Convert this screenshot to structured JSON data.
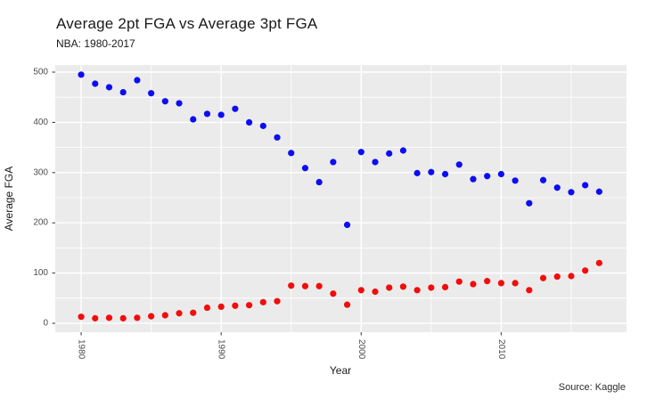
{
  "chart_data": {
    "type": "scatter",
    "title": "Average 2pt FGA vs Average 3pt FGA",
    "subtitle": "NBA: 1980-2017",
    "xlabel": "Year",
    "ylabel": "Average FGA",
    "caption": "Source: Kaggle",
    "x": [
      1980,
      1981,
      1982,
      1983,
      1984,
      1985,
      1986,
      1987,
      1988,
      1989,
      1990,
      1991,
      1992,
      1993,
      1994,
      1995,
      1996,
      1997,
      1998,
      1999,
      2000,
      2001,
      2002,
      2003,
      2004,
      2005,
      2006,
      2007,
      2008,
      2009,
      2010,
      2011,
      2012,
      2013,
      2014,
      2015,
      2016,
      2017
    ],
    "series": [
      {
        "name": "Average 2pt FGA",
        "color": "#0D0DF2",
        "values": [
          495,
          477,
          470,
          460,
          484,
          458,
          442,
          438,
          406,
          417,
          415,
          427,
          400,
          393,
          370,
          339,
          309,
          281,
          321,
          196,
          341,
          321,
          338,
          344,
          299,
          301,
          297,
          316,
          287,
          293,
          297,
          284,
          239,
          285,
          270,
          261,
          275,
          262
        ]
      },
      {
        "name": "Average 3pt FGA",
        "color": "#F20D0D",
        "values": [
          13,
          10,
          11,
          10,
          11,
          14,
          16,
          20,
          21,
          31,
          33,
          35,
          36,
          42,
          44,
          75,
          74,
          74,
          59,
          37,
          66,
          63,
          71,
          73,
          66,
          71,
          72,
          83,
          78,
          84,
          80,
          80,
          66,
          90,
          93,
          94,
          105,
          120
        ]
      }
    ],
    "xticks": [
      1980,
      1990,
      2000,
      2010
    ],
    "xticks_minor": [
      1985,
      1995,
      2005,
      2015
    ],
    "yticks": [
      0,
      100,
      200,
      300,
      400,
      500
    ],
    "yticks_minor": [
      50,
      150,
      250,
      350,
      450
    ],
    "xlim": [
      1978.15,
      2018.95
    ],
    "ylim": [
      -17.7,
      514.2
    ],
    "grid": true,
    "legend": "none",
    "panel_bg": "#EBEBEB",
    "grid_color": "#FFFFFF",
    "tick_color": "#333333",
    "tick_label_color": "#4D4D4D",
    "point_radius": 3.6
  }
}
